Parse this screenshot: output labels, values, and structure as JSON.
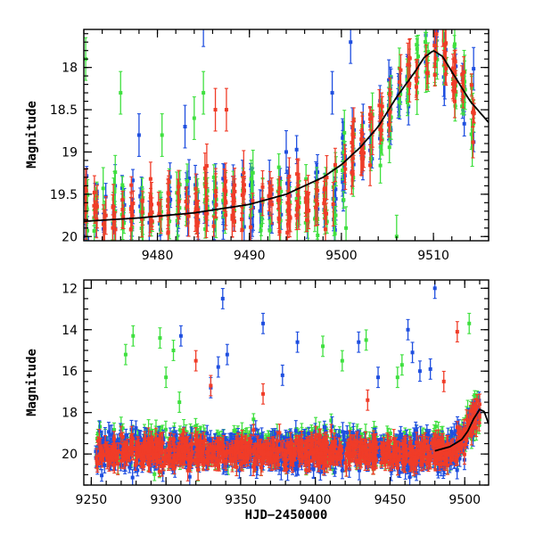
{
  "chart_data": [
    {
      "type": "scatter",
      "panel": "top",
      "title": "",
      "xlabel": "",
      "ylabel": "Magnitude",
      "xlim": [
        9472,
        9516
      ],
      "ylim": [
        20.05,
        17.55
      ],
      "y_inverted": true,
      "xticks": [
        9480,
        9490,
        9500,
        9510
      ],
      "xtick_labels": [
        "9480",
        "9490",
        "9500",
        "9510"
      ],
      "yticks": [
        18,
        18.5,
        19,
        19.5,
        20
      ],
      "ytick_labels": [
        "18",
        "18.5",
        "19",
        "19.5",
        "20"
      ],
      "colors": {
        "blue": "#1f4fe0",
        "green": "#3fe03f",
        "red": "#f03c28",
        "model": "#000000"
      },
      "model_curve": {
        "name": "model",
        "x": [
          9472,
          9478,
          9484,
          9490,
          9494,
          9498,
          9500,
          9502,
          9504,
          9506,
          9508,
          9509,
          9510,
          9511,
          9512,
          9514,
          9516
        ],
        "y": [
          19.82,
          19.78,
          19.72,
          19.62,
          19.5,
          19.3,
          19.15,
          18.95,
          18.7,
          18.35,
          18.05,
          17.88,
          17.8,
          17.87,
          18.05,
          18.4,
          18.65
        ]
      },
      "series": [
        {
          "name": "blue",
          "color": "#1f4fe0",
          "base": 19.55,
          "spread": 0.4,
          "outliers": [
            [
              9478,
              18.8
            ],
            [
              9483,
              18.7
            ],
            [
              9485,
              17.5
            ],
            [
              9494,
              19.0
            ],
            [
              9501,
              17.7
            ],
            [
              9499,
              18.3
            ]
          ]
        },
        {
          "name": "green",
          "color": "#3fe03f",
          "base": 19.6,
          "spread": 0.4,
          "outliers": [
            [
              9472.2,
              17.9
            ],
            [
              9476,
              18.3
            ],
            [
              9484,
              18.6
            ],
            [
              9485,
              18.3
            ],
            [
              9480.5,
              18.8
            ],
            [
              9500.5,
              19.9
            ],
            [
              9506,
              20.0
            ]
          ]
        },
        {
          "name": "red",
          "color": "#f03c28",
          "base": 19.6,
          "spread": 0.35,
          "outliers": [
            [
              9486.3,
              18.5
            ],
            [
              9487.5,
              18.5
            ],
            [
              9511,
              17.5
            ]
          ]
        }
      ]
    },
    {
      "type": "scatter",
      "panel": "bottom",
      "title": "",
      "xlabel": "HJD−2450000",
      "ylabel": "Magnitude",
      "xlim": [
        9245,
        9516
      ],
      "ylim": [
        21.5,
        11.6
      ],
      "y_inverted": true,
      "xticks": [
        9250,
        9300,
        9350,
        9400,
        9450,
        9500
      ],
      "xtick_labels": [
        "9250",
        "9300",
        "9350",
        "9400",
        "9450",
        "9500"
      ],
      "yticks": [
        12,
        14,
        16,
        18,
        20
      ],
      "ytick_labels": [
        "12",
        "14",
        "16",
        "18",
        "20"
      ],
      "colors": {
        "blue": "#1f4fe0",
        "green": "#3fe03f",
        "red": "#f03c28",
        "model": "#000000"
      },
      "model_curve": {
        "name": "model",
        "x": [
          9480,
          9490,
          9498,
          9502,
          9506,
          9510,
          9513,
          9516
        ],
        "y": [
          19.85,
          19.65,
          19.3,
          18.9,
          18.3,
          17.85,
          17.95,
          18.55
        ]
      },
      "series": [
        {
          "name": "blue",
          "color": "#1f4fe0",
          "base": 19.9,
          "spread": 0.9,
          "outliers": [
            [
              9338,
              12.5
            ],
            [
              9365,
              13.7
            ],
            [
              9310,
              14.3
            ],
            [
              9341,
              15.2
            ],
            [
              9335,
              15.8
            ],
            [
              9330,
              16.8
            ],
            [
              9378,
              16.2
            ],
            [
              9388,
              14.6
            ],
            [
              9429,
              14.6
            ],
            [
              9462,
              14.0
            ],
            [
              9465,
              15.1
            ],
            [
              9480,
              12.0
            ],
            [
              9470,
              16.0
            ],
            [
              9477,
              15.9
            ],
            [
              9442,
              16.3
            ]
          ]
        },
        {
          "name": "green",
          "color": "#3fe03f",
          "base": 19.75,
          "spread": 0.9,
          "outliers": [
            [
              9278,
              14.3
            ],
            [
              9296,
              14.4
            ],
            [
              9305,
              15.0
            ],
            [
              9300,
              16.3
            ],
            [
              9273,
              15.2
            ],
            [
              9309,
              17.5
            ],
            [
              9405,
              14.8
            ],
            [
              9418,
              15.5
            ],
            [
              9434,
              14.5
            ],
            [
              9458,
              15.7
            ],
            [
              9455,
              16.3
            ],
            [
              9503,
              13.7
            ],
            [
              9502,
              17.9
            ]
          ]
        },
        {
          "name": "red",
          "color": "#f03c28",
          "base": 19.95,
          "spread": 0.7,
          "outliers": [
            [
              9320,
              15.5
            ],
            [
              9330,
              16.7
            ],
            [
              9365,
              17.1
            ],
            [
              9495,
              14.1
            ],
            [
              9486,
              16.5
            ],
            [
              9435,
              17.4
            ],
            [
              9510,
              17.6
            ]
          ]
        }
      ]
    }
  ]
}
